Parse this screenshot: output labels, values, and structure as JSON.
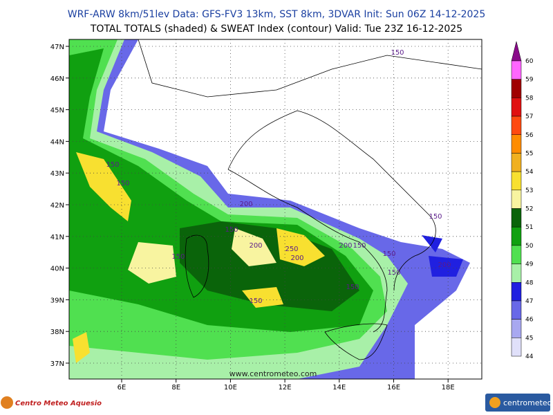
{
  "header": {
    "line1": "WRF-ARW 8km/51lev   Data: GFS-FV3 13km, SST 8km, 3DVAR   Init: Sun 06Z 14-12-2025",
    "line2": "TOTAL TOTALS (shaded) & SWEAT Index (contour)  Valid: Tue 23Z 16-12-2025"
  },
  "map": {
    "lat_labels": [
      "47N",
      "46N",
      "45N",
      "44N",
      "43N",
      "42N",
      "41N",
      "40N",
      "39N",
      "38N",
      "37N"
    ],
    "lon_labels": [
      "6E",
      "8E",
      "10E",
      "12E",
      "14E",
      "16E",
      "18E"
    ],
    "contour_labels": [
      "150",
      "150",
      "150",
      "200",
      "150",
      "200",
      "250",
      "200",
      "200",
      "150",
      "150",
      "150",
      "150",
      "150",
      "200",
      "150"
    ],
    "watermark": "www.centrometeo.com"
  },
  "colorbar": [
    {
      "label": 60,
      "color": "#8a0a8a"
    },
    {
      "label": 59,
      "color": "#ff66ff"
    },
    {
      "label": 58,
      "color": "#a00000"
    },
    {
      "label": 57,
      "color": "#e01010"
    },
    {
      "label": 56,
      "color": "#ff4a10"
    },
    {
      "label": 55,
      "color": "#ff8c00"
    },
    {
      "label": 54,
      "color": "#f0b020"
    },
    {
      "label": 53,
      "color": "#f8e030"
    },
    {
      "label": 52,
      "color": "#f8f4a0"
    },
    {
      "label": 51,
      "color": "#0a640a"
    },
    {
      "label": 50,
      "color": "#10a010"
    },
    {
      "label": 49,
      "color": "#50e050"
    },
    {
      "label": 48,
      "color": "#a8f0a8"
    },
    {
      "label": 47,
      "color": "#2020e0"
    },
    {
      "label": 46,
      "color": "#6868e8"
    },
    {
      "label": 45,
      "color": "#a8a8f0"
    },
    {
      "label": 44,
      "color": "#e0e0fa"
    }
  ],
  "footer": {
    "left_logo": "Centro Meteo Aquesio",
    "right_logo": "centrometeo"
  }
}
